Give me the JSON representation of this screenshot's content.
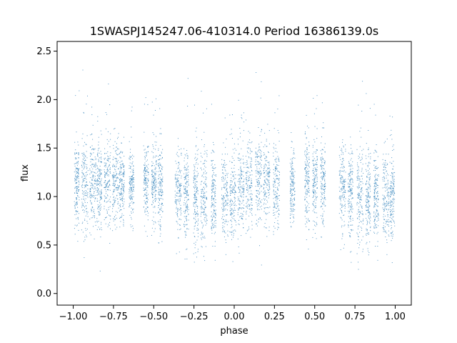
{
  "chart_data": {
    "type": "scatter",
    "title": "1SWASPJ145247.06-410314.0 Period 16386139.0s",
    "xlabel": "phase",
    "ylabel": "flux",
    "xlim": [
      -1.1,
      1.1
    ],
    "ylim": [
      -0.12,
      2.6
    ],
    "xticks": [
      -1.0,
      -0.75,
      -0.5,
      -0.25,
      0.0,
      0.25,
      0.5,
      0.75,
      1.0
    ],
    "xtick_labels": [
      "−1.00",
      "−0.75",
      "−0.50",
      "−0.25",
      "0.00",
      "0.25",
      "0.50",
      "0.75",
      "1.00"
    ],
    "yticks": [
      0.0,
      0.5,
      1.0,
      1.5,
      2.0,
      2.5
    ],
    "ytick_labels": [
      "0.0",
      "0.5",
      "1.0",
      "1.5",
      "2.0",
      "2.5"
    ],
    "marker_color": "#1f77b4",
    "grid": false,
    "legend": "none",
    "series": [
      {
        "phase_clusters": [
          [
            -0.98,
            0.015,
            1.12,
            0.22
          ],
          [
            -0.93,
            0.02,
            1.12,
            0.22
          ],
          [
            -0.88,
            0.02,
            1.14,
            0.24
          ],
          [
            -0.84,
            0.015,
            1.12,
            0.22
          ],
          [
            -0.79,
            0.02,
            1.15,
            0.24
          ],
          [
            -0.74,
            0.02,
            1.13,
            0.22
          ],
          [
            -0.7,
            0.015,
            1.12,
            0.2
          ],
          [
            -0.64,
            0.015,
            1.12,
            0.18
          ],
          [
            -0.55,
            0.015,
            1.13,
            0.2
          ],
          [
            -0.5,
            0.015,
            1.12,
            0.2
          ],
          [
            -0.46,
            0.015,
            1.1,
            0.22
          ],
          [
            -0.35,
            0.02,
            1.08,
            0.24
          ],
          [
            -0.3,
            0.015,
            1.03,
            0.24
          ],
          [
            -0.24,
            0.015,
            0.98,
            0.26
          ],
          [
            -0.19,
            0.02,
            0.97,
            0.26
          ],
          [
            -0.13,
            0.015,
            0.97,
            0.24
          ],
          [
            -0.06,
            0.02,
            0.98,
            0.24
          ],
          [
            -0.01,
            0.02,
            1.0,
            0.24
          ],
          [
            0.04,
            0.02,
            1.12,
            0.24
          ],
          [
            0.09,
            0.02,
            1.14,
            0.24
          ],
          [
            0.15,
            0.02,
            1.16,
            0.24
          ],
          [
            0.2,
            0.02,
            1.15,
            0.22
          ],
          [
            0.26,
            0.02,
            1.12,
            0.22
          ],
          [
            0.36,
            0.015,
            1.12,
            0.2
          ],
          [
            0.45,
            0.015,
            1.14,
            0.22
          ],
          [
            0.5,
            0.015,
            1.15,
            0.22
          ],
          [
            0.55,
            0.015,
            1.16,
            0.22
          ],
          [
            0.67,
            0.02,
            1.12,
            0.24
          ],
          [
            0.72,
            0.015,
            1.05,
            0.26
          ],
          [
            0.78,
            0.02,
            0.98,
            0.26
          ],
          [
            0.83,
            0.015,
            0.98,
            0.24
          ],
          [
            0.88,
            0.015,
            0.97,
            0.24
          ],
          [
            0.94,
            0.02,
            0.98,
            0.24
          ],
          [
            0.98,
            0.015,
            0.99,
            0.24
          ]
        ],
        "points_per_cluster": 160
      }
    ]
  }
}
